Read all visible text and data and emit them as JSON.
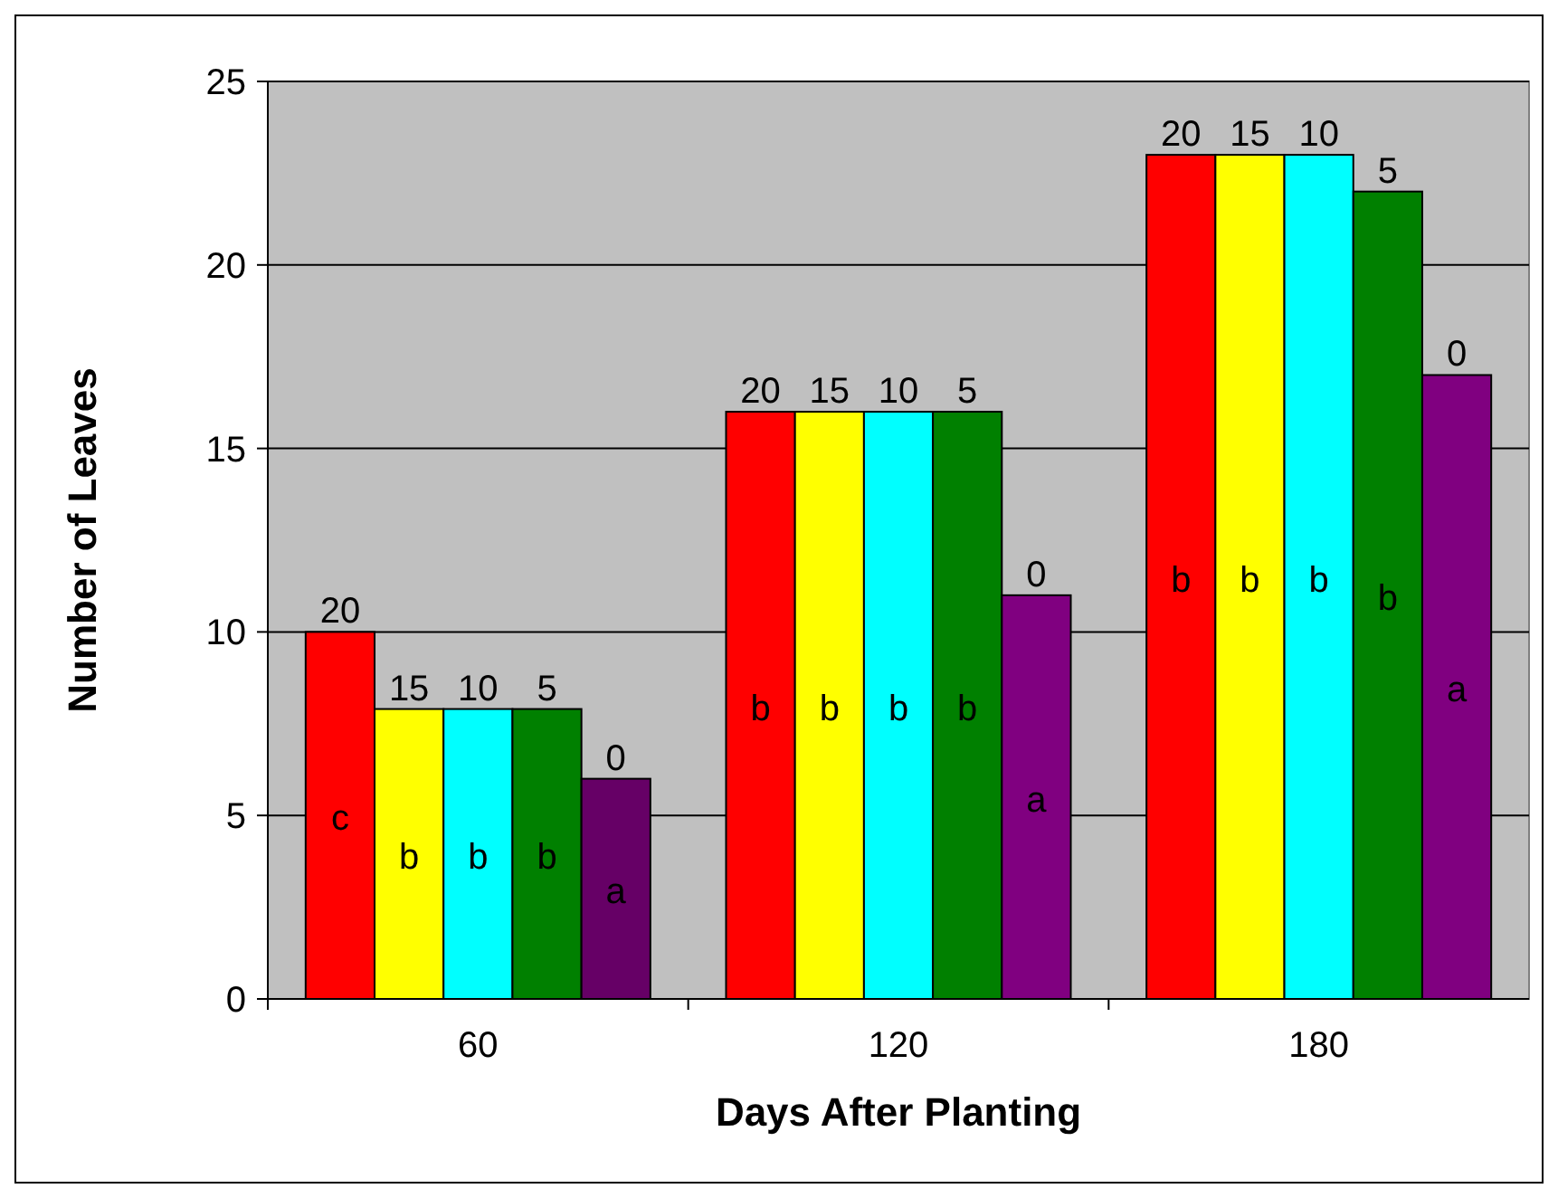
{
  "chart_data": {
    "type": "bar",
    "xlabel": "Days After Planting",
    "ylabel": "Number of Leaves",
    "categories": [
      "60",
      "120",
      "180"
    ],
    "ylim": [
      0,
      25
    ],
    "yticks": [
      0,
      5,
      10,
      15,
      20,
      25
    ],
    "grid": "y",
    "series": [
      {
        "name": "20",
        "color": "#ff0000",
        "values": [
          10,
          16,
          23
        ],
        "value_labels": [
          "c",
          "b",
          "b"
        ]
      },
      {
        "name": "15",
        "color": "#ffff00",
        "values": [
          7.9,
          16,
          23
        ],
        "value_labels": [
          "b",
          "b",
          "b"
        ]
      },
      {
        "name": "10",
        "color": "#00ffff",
        "values": [
          7.9,
          16,
          23
        ],
        "value_labels": [
          "b",
          "b",
          "b"
        ]
      },
      {
        "name": "5",
        "color": "#008000",
        "values": [
          7.9,
          16,
          22
        ],
        "value_labels": [
          "b",
          "b",
          "b"
        ]
      },
      {
        "name": "0",
        "color": "#800080",
        "colors": [
          "#660066",
          null,
          null
        ],
        "values": [
          6,
          11,
          17
        ],
        "value_labels": [
          "a",
          "a",
          "a"
        ]
      }
    ]
  }
}
